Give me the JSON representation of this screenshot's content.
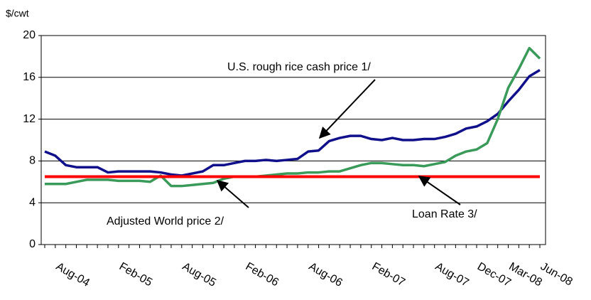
{
  "chart_data": {
    "type": "line",
    "y_label": "$/cwt",
    "categories": [
      null,
      "Aug-04",
      null,
      null,
      null,
      null,
      null,
      "Feb-05",
      null,
      null,
      null,
      null,
      null,
      "Aug-05",
      null,
      null,
      null,
      null,
      null,
      "Feb-06",
      null,
      null,
      null,
      null,
      null,
      "Aug-06",
      null,
      null,
      null,
      null,
      null,
      "Feb-07",
      null,
      null,
      null,
      null,
      null,
      "Aug-07",
      null,
      null,
      null,
      "Dec-07",
      null,
      null,
      "Mar-08",
      null,
      null,
      "Jun-08"
    ],
    "series": [
      {
        "name": "U.S. rough rice cash price 1/",
        "color": "#10108a",
        "values": [
          8.9,
          8.5,
          7.6,
          7.4,
          7.4,
          7.4,
          6.9,
          7.0,
          7.0,
          7.0,
          7.0,
          6.9,
          6.7,
          6.6,
          6.8,
          7.0,
          7.6,
          7.6,
          7.8,
          8.0,
          8.0,
          8.1,
          8.0,
          8.1,
          8.2,
          8.9,
          9.0,
          9.9,
          10.2,
          10.4,
          10.4,
          10.1,
          10.0,
          10.2,
          10.0,
          10.0,
          10.1,
          10.1,
          10.3,
          10.6,
          11.1,
          11.3,
          11.8,
          12.5,
          13.7,
          14.8,
          16.1,
          16.7
        ]
      },
      {
        "name": "Adjusted World price 2/",
        "color": "#3a9a5a",
        "values": [
          5.8,
          5.8,
          5.8,
          6.0,
          6.2,
          6.2,
          6.2,
          6.1,
          6.1,
          6.1,
          6.0,
          6.6,
          5.6,
          5.6,
          5.7,
          5.8,
          5.9,
          6.3,
          6.5,
          6.5,
          6.5,
          6.6,
          6.7,
          6.8,
          6.8,
          6.9,
          6.9,
          7.0,
          7.0,
          7.3,
          7.6,
          7.8,
          7.8,
          7.7,
          7.6,
          7.6,
          7.5,
          7.7,
          7.9,
          8.5,
          8.9,
          9.1,
          9.7,
          12.0,
          15.0,
          16.8,
          18.8,
          17.8
        ]
      },
      {
        "name": "Loan Rate 3/",
        "color": "#ff0000",
        "values": [
          6.5,
          6.5,
          6.5,
          6.5,
          6.5,
          6.5,
          6.5,
          6.5,
          6.5,
          6.5,
          6.5,
          6.5,
          6.5,
          6.5,
          6.5,
          6.5,
          6.5,
          6.5,
          6.5,
          6.5,
          6.5,
          6.5,
          6.5,
          6.5,
          6.5,
          6.5,
          6.5,
          6.5,
          6.5,
          6.5,
          6.5,
          6.5,
          6.5,
          6.5,
          6.5,
          6.5,
          6.5,
          6.5,
          6.5,
          6.5,
          6.5,
          6.5,
          6.5,
          6.5,
          6.5,
          6.5,
          6.5,
          6.5
        ]
      }
    ],
    "ylim": [
      0,
      20
    ],
    "yticks": [
      0,
      4,
      8,
      12,
      16,
      20
    ],
    "grid": true
  }
}
